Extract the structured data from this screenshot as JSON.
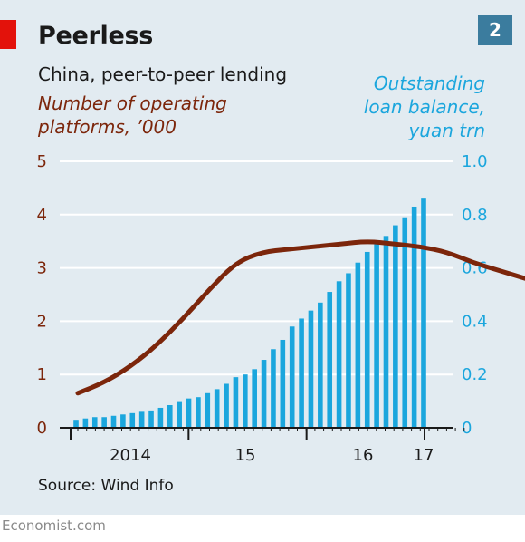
{
  "title": "Peerless",
  "badge": "2",
  "subtitle": "China, peer-to-peer lending",
  "source": "Source: Wind Info",
  "footer": "Economist.com",
  "colors": {
    "platforms_line": "#7c260b",
    "loan_bars": "#1ba6dd",
    "accent_red": "#e3120b",
    "background": "#e2ebf1"
  },
  "chart_data": {
    "type": "bar+line",
    "left_axis": {
      "label_line1": "Number of operating",
      "label_line2": "platforms, ’000",
      "range": [
        0,
        5
      ],
      "ticks": [
        "0",
        "1",
        "2",
        "3",
        "4",
        "5"
      ]
    },
    "right_axis": {
      "label_line1": "Outstanding",
      "label_line2": "loan balance,",
      "label_line3": "yuan trn",
      "range": [
        0,
        1.0
      ],
      "ticks": [
        "0",
        "0.2",
        "0.4",
        "0.6",
        "0.8",
        "1.0"
      ]
    },
    "x_axis": {
      "labels": [
        "2014",
        "15",
        "16",
        "17"
      ],
      "label_month_index": [
        12,
        24,
        36,
        48
      ],
      "start": "2013-06",
      "months": 44
    },
    "grid": true,
    "series": [
      {
        "type": "bar",
        "axis": "right",
        "values": [
          0.03,
          0.035,
          0.04,
          0.04,
          0.045,
          0.05,
          0.055,
          0.06,
          0.065,
          0.075,
          0.085,
          0.1,
          0.11,
          0.115,
          0.13,
          0.145,
          0.165,
          0.19,
          0.2,
          0.22,
          0.255,
          0.295,
          0.33,
          0.38,
          0.41,
          0.44,
          0.47,
          0.51,
          0.55,
          0.58,
          0.62,
          0.66,
          0.69,
          0.72,
          0.76,
          0.79,
          0.83,
          0.86
        ]
      },
      {
        "type": "line",
        "axis": "left",
        "points": [
          [
            0,
            0.65
          ],
          [
            3,
            0.85
          ],
          [
            6,
            1.15
          ],
          [
            9,
            1.55
          ],
          [
            12,
            2.05
          ],
          [
            15,
            2.6
          ],
          [
            18,
            3.1
          ],
          [
            21,
            3.3
          ],
          [
            24,
            3.35
          ],
          [
            27,
            3.4
          ],
          [
            30,
            3.45
          ],
          [
            33,
            3.5
          ],
          [
            36,
            3.45
          ],
          [
            39,
            3.4
          ],
          [
            42,
            3.3
          ],
          [
            45,
            3.1
          ],
          [
            48,
            2.95
          ],
          [
            51,
            2.8
          ]
        ]
      }
    ]
  }
}
